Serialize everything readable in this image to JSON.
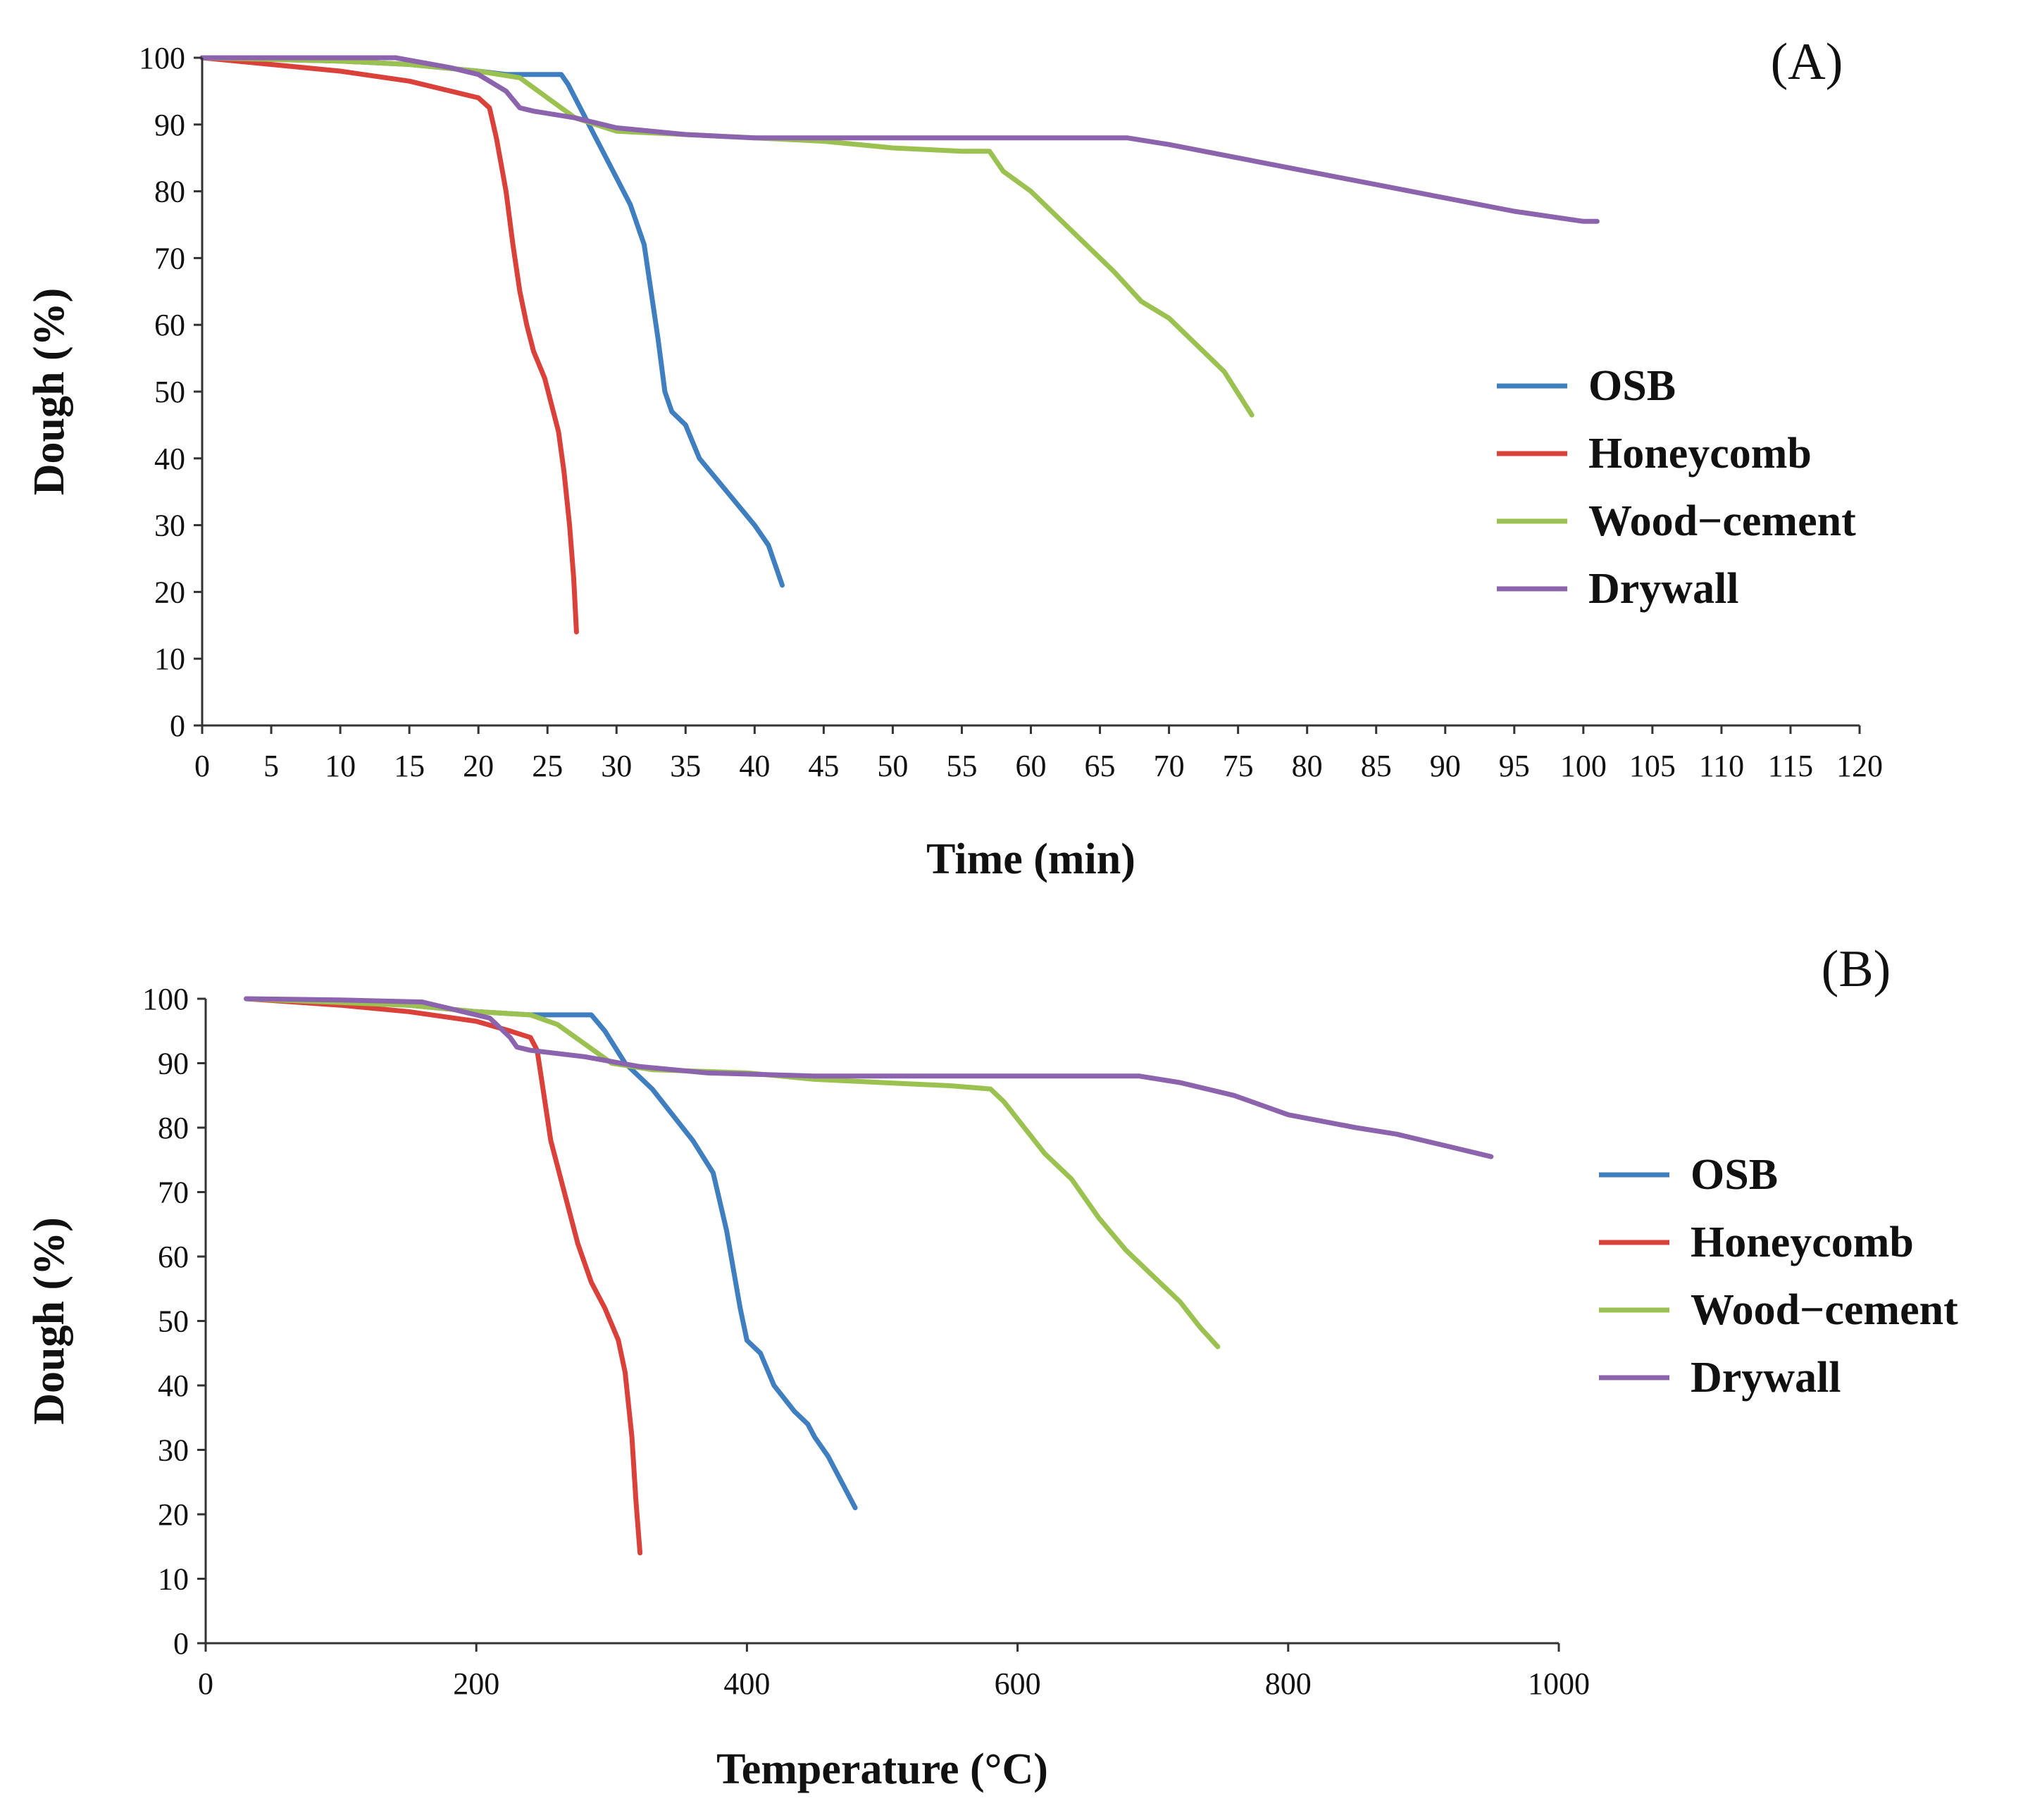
{
  "chart_data": [
    {
      "type": "line",
      "panel_label": "(A)",
      "xlabel": "Time (min)",
      "ylabel": "Dough (%)",
      "xlim": [
        0,
        120
      ],
      "ylim": [
        0,
        100
      ],
      "xticks": [
        "0",
        "5",
        "10",
        "15",
        "20",
        "25",
        "30",
        "35",
        "40",
        "45",
        "50",
        "55",
        "60",
        "65",
        "70",
        "75",
        "80",
        "85",
        "90",
        "95",
        "100",
        "105",
        "110",
        "115",
        "120"
      ],
      "yticks": [
        "0",
        "10",
        "20",
        "30",
        "40",
        "50",
        "60",
        "70",
        "80",
        "90",
        "100"
      ],
      "grid": false,
      "legend_position": "right",
      "series": [
        {
          "name": "OSB",
          "color": "#3f7fbf",
          "points": [
            [
              0,
              100
            ],
            [
              10,
              99.5
            ],
            [
              15,
              99
            ],
            [
              20,
              98
            ],
            [
              22,
              97.5
            ],
            [
              26,
              97.5
            ],
            [
              26.5,
              96
            ],
            [
              28,
              90
            ],
            [
              30,
              82
            ],
            [
              31,
              78
            ],
            [
              32,
              72
            ],
            [
              33,
              58
            ],
            [
              33.5,
              50
            ],
            [
              34,
              47
            ],
            [
              35,
              45
            ],
            [
              36,
              40
            ],
            [
              38,
              35
            ],
            [
              40,
              30
            ],
            [
              41,
              27
            ],
            [
              42,
              21
            ]
          ]
        },
        {
          "name": "Honeycomb",
          "color": "#d9413a",
          "points": [
            [
              0,
              100
            ],
            [
              5,
              99
            ],
            [
              10,
              98
            ],
            [
              15,
              96.5
            ],
            [
              18,
              95
            ],
            [
              20,
              94
            ],
            [
              20.8,
              92.5
            ],
            [
              21.3,
              88
            ],
            [
              22,
              80
            ],
            [
              22.5,
              72
            ],
            [
              23,
              65
            ],
            [
              23.5,
              60
            ],
            [
              24,
              56
            ],
            [
              24.8,
              52
            ],
            [
              25.3,
              48
            ],
            [
              25.8,
              44
            ],
            [
              26.2,
              38
            ],
            [
              26.6,
              30
            ],
            [
              26.9,
              22
            ],
            [
              27.1,
              14
            ]
          ]
        },
        {
          "name": "Wood−cement",
          "color": "#9bc151",
          "points": [
            [
              0,
              100
            ],
            [
              10,
              99.5
            ],
            [
              15,
              99
            ],
            [
              20,
              98
            ],
            [
              23,
              97
            ],
            [
              25,
              94
            ],
            [
              27,
              91
            ],
            [
              30,
              89
            ],
            [
              35,
              88.5
            ],
            [
              40,
              88
            ],
            [
              45,
              87.5
            ],
            [
              50,
              86.5
            ],
            [
              55,
              86
            ],
            [
              57,
              86
            ],
            [
              58,
              83
            ],
            [
              60,
              80
            ],
            [
              62,
              76
            ],
            [
              64,
              72
            ],
            [
              66,
              68
            ],
            [
              68,
              63.5
            ],
            [
              70,
              61
            ],
            [
              72,
              57
            ],
            [
              74,
              53
            ],
            [
              76,
              46.5
            ]
          ]
        },
        {
          "name": "Drywall",
          "color": "#8b64ad",
          "points": [
            [
              0,
              100
            ],
            [
              10,
              100
            ],
            [
              14,
              100
            ],
            [
              18,
              98.5
            ],
            [
              20,
              97.5
            ],
            [
              22,
              95
            ],
            [
              23,
              92.5
            ],
            [
              24,
              92
            ],
            [
              27,
              91
            ],
            [
              30,
              89.5
            ],
            [
              35,
              88.5
            ],
            [
              40,
              88
            ],
            [
              45,
              88
            ],
            [
              50,
              88
            ],
            [
              55,
              88
            ],
            [
              60,
              88
            ],
            [
              67,
              88
            ],
            [
              70,
              87
            ],
            [
              75,
              85
            ],
            [
              80,
              83
            ],
            [
              85,
              81
            ],
            [
              90,
              79
            ],
            [
              95,
              77
            ],
            [
              100,
              75.5
            ],
            [
              101,
              75.5
            ]
          ]
        }
      ]
    },
    {
      "type": "line",
      "panel_label": "(B)",
      "xlabel": "Temperature (°C)",
      "ylabel": "Dough (%)",
      "xlim": [
        0,
        1000
      ],
      "ylim": [
        0,
        100
      ],
      "xticks": [
        "0",
        "200",
        "400",
        "600",
        "800",
        "1000"
      ],
      "yticks": [
        "0",
        "10",
        "20",
        "30",
        "40",
        "50",
        "60",
        "70",
        "80",
        "90",
        "100"
      ],
      "grid": false,
      "legend_position": "right",
      "series": [
        {
          "name": "OSB",
          "color": "#3f7fbf",
          "points": [
            [
              30,
              100
            ],
            [
              100,
              99.5
            ],
            [
              150,
              99
            ],
            [
              200,
              98
            ],
            [
              240,
              97.5
            ],
            [
              285,
              97.5
            ],
            [
              295,
              95
            ],
            [
              310,
              90
            ],
            [
              330,
              86
            ],
            [
              345,
              82
            ],
            [
              360,
              78
            ],
            [
              375,
              73
            ],
            [
              385,
              64
            ],
            [
              395,
              52
            ],
            [
              400,
              47
            ],
            [
              410,
              45
            ],
            [
              420,
              40
            ],
            [
              435,
              36
            ],
            [
              445,
              34
            ],
            [
              450,
              32
            ],
            [
              460,
              29
            ],
            [
              470,
              25
            ],
            [
              480,
              21
            ]
          ]
        },
        {
          "name": "Honeycomb",
          "color": "#d9413a",
          "points": [
            [
              30,
              100
            ],
            [
              100,
              99
            ],
            [
              150,
              98
            ],
            [
              200,
              96.5
            ],
            [
              225,
              95
            ],
            [
              240,
              94
            ],
            [
              245,
              92
            ],
            [
              250,
              85
            ],
            [
              255,
              78
            ],
            [
              265,
              70
            ],
            [
              275,
              62
            ],
            [
              285,
              56
            ],
            [
              295,
              52
            ],
            [
              305,
              47
            ],
            [
              310,
              42
            ],
            [
              315,
              32
            ],
            [
              318,
              22
            ],
            [
              321,
              14
            ]
          ]
        },
        {
          "name": "Wood−cement",
          "color": "#9bc151",
          "points": [
            [
              30,
              100
            ],
            [
              150,
              99
            ],
            [
              200,
              98
            ],
            [
              240,
              97.5
            ],
            [
              260,
              96
            ],
            [
              280,
              93
            ],
            [
              300,
              90
            ],
            [
              330,
              89
            ],
            [
              400,
              88.5
            ],
            [
              450,
              87.5
            ],
            [
              500,
              87
            ],
            [
              550,
              86.5
            ],
            [
              580,
              86
            ],
            [
              590,
              84
            ],
            [
              605,
              80
            ],
            [
              620,
              76
            ],
            [
              640,
              72
            ],
            [
              660,
              66
            ],
            [
              680,
              61
            ],
            [
              700,
              57
            ],
            [
              720,
              53
            ],
            [
              735,
              49
            ],
            [
              748,
              46
            ]
          ]
        },
        {
          "name": "Drywall",
          "color": "#8b64ad",
          "points": [
            [
              30,
              100
            ],
            [
              100,
              99.8
            ],
            [
              160,
              99.5
            ],
            [
              190,
              98
            ],
            [
              210,
              97
            ],
            [
              225,
              94
            ],
            [
              230,
              92.5
            ],
            [
              240,
              92
            ],
            [
              280,
              91
            ],
            [
              320,
              89.5
            ],
            [
              370,
              88.5
            ],
            [
              450,
              88
            ],
            [
              550,
              88
            ],
            [
              650,
              88
            ],
            [
              690,
              88
            ],
            [
              720,
              87
            ],
            [
              760,
              85
            ],
            [
              800,
              82
            ],
            [
              850,
              80
            ],
            [
              880,
              79
            ],
            [
              920,
              77
            ],
            [
              950,
              75.5
            ]
          ]
        }
      ]
    }
  ]
}
